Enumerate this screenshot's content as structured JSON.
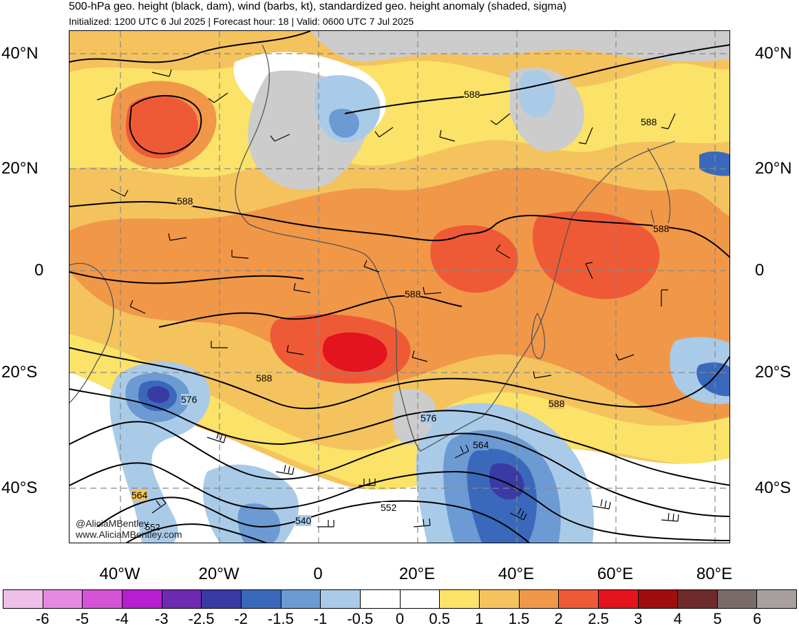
{
  "header": {
    "title": "500-hPa geo. height (black, dam), wind (barbs, kt), standardized geo. height anomaly (shaded, sigma)",
    "subtitle": "Initialized: 1200 UTC 6 Jul 2025 | Forecast hour: 18 | Valid: 0600 UTC 7 Jul 2025"
  },
  "map": {
    "lat_labels": [
      "40°N",
      "20°N",
      "0",
      "20°S",
      "40°S"
    ],
    "lon_labels": [
      "40°W",
      "20°W",
      "0",
      "20°E",
      "40°E",
      "60°E",
      "80°E"
    ],
    "contour_labels": [
      "588",
      "588",
      "588",
      "588",
      "588",
      "588",
      "588",
      "576",
      "576",
      "564",
      "564",
      "552",
      "540",
      "552"
    ],
    "credits": [
      "@AliciaMBentley",
      "www.AliciaMBentley.com"
    ]
  },
  "colorbar": {
    "labels": [
      "-6",
      "-5",
      "-4",
      "-3",
      "-2.5",
      "-2",
      "-1.5",
      "-1",
      "-0.5",
      "0",
      "0.5",
      "1",
      "1.5",
      "2",
      "2.5",
      "3",
      "4",
      "5",
      "6"
    ],
    "colors": [
      "#eebfe8",
      "#e58ae0",
      "#d653d7",
      "#b51fcf",
      "#6e2ab2",
      "#3a3aa4",
      "#3a69bc",
      "#6c9bd3",
      "#a9cbe8",
      "#ffffff",
      "#ffffff",
      "#fbe268",
      "#f4c35e",
      "#f19748",
      "#ef5a36",
      "#e3141d",
      "#a00d0e",
      "#6e2b2b",
      "#7a6b6b",
      "#a89f9f"
    ]
  }
}
